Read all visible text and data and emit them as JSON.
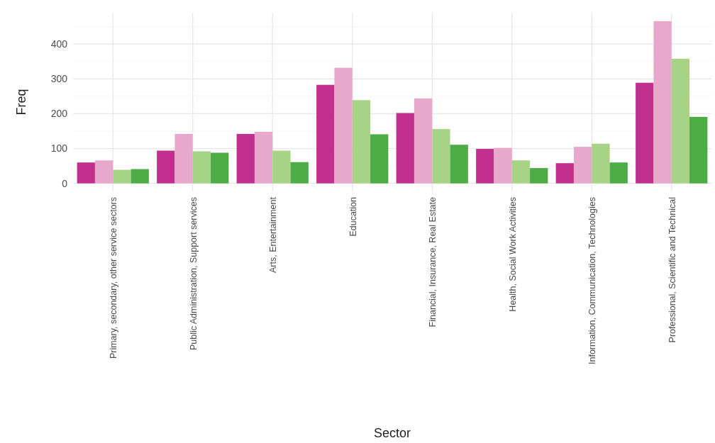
{
  "chart_data": {
    "type": "bar",
    "xlabel": "Sector",
    "ylabel": "Freq",
    "categories": [
      "Primary, secondary, other service sectors",
      "Public Administration, Support services",
      "Arts, Entertainment",
      "Education",
      "Financial, Insurance, Real Estate",
      "Health, Social Work Activities",
      "Information, Communication, Technologies",
      "Professional, Scientific and Technical"
    ],
    "series": [
      {
        "color": "#c0308c",
        "values": [
          60,
          94,
          142,
          283,
          202,
          99,
          58,
          289
        ]
      },
      {
        "color": "#e8a8cc",
        "values": [
          66,
          142,
          148,
          332,
          244,
          102,
          105,
          466
        ]
      },
      {
        "color": "#a6d385",
        "values": [
          39,
          92,
          94,
          239,
          156,
          66,
          114,
          358
        ]
      },
      {
        "color": "#4dac46",
        "values": [
          41,
          88,
          61,
          141,
          111,
          44,
          60,
          191
        ]
      }
    ],
    "ylim": [
      -23,
      490
    ],
    "yticks": [
      0,
      100,
      200,
      300,
      400
    ],
    "grid": true
  }
}
